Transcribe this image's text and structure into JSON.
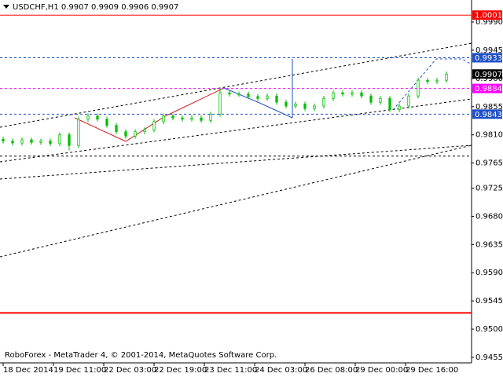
{
  "chart_data": {
    "type": "candlestick",
    "title": "USDCHF,H1  0.9907 0.9909 0.9906 0.9907",
    "annotation": "RoboForex - MetaTrader 4, © 2001-2014, MetaQuotes Software Corp.",
    "x": [
      0,
      3,
      6,
      9,
      12,
      15,
      18,
      21,
      24,
      27,
      30,
      33,
      36,
      39,
      42,
      45,
      48,
      51,
      54,
      57,
      60,
      63,
      66,
      69,
      72,
      75,
      78,
      81,
      84,
      87,
      90,
      93,
      96,
      99,
      102,
      105,
      108,
      111,
      114,
      117,
      120,
      123,
      126,
      129,
      132,
      135,
      138,
      141
    ],
    "open": [
      0.9803,
      0.98,
      0.9797,
      0.9802,
      0.9798,
      0.98,
      0.9796,
      0.981,
      0.9793,
      0.9835,
      0.984,
      0.9835,
      0.9825,
      0.9815,
      0.9808,
      0.9815,
      0.9818,
      0.9831,
      0.984,
      0.9837,
      0.9835,
      0.9837,
      0.9833,
      0.9843,
      0.9877,
      0.9875,
      0.9875,
      0.9871,
      0.9868,
      0.9872,
      0.9862,
      0.9856,
      0.9859,
      0.9852,
      0.9856,
      0.9868,
      0.9877,
      0.9875,
      0.9877,
      0.9872,
      0.9862,
      0.9868,
      0.985,
      0.9856,
      0.9872,
      0.9897,
      0.9895,
      0.9897
    ],
    "high": [
      0.9807,
      0.9804,
      0.9806,
      0.9806,
      0.9804,
      0.9804,
      0.9814,
      0.9814,
      0.9839,
      0.9844,
      0.9844,
      0.9839,
      0.9829,
      0.9819,
      0.9819,
      0.9822,
      0.9835,
      0.9844,
      0.9844,
      0.9841,
      0.9841,
      0.9841,
      0.9847,
      0.9886,
      0.9881,
      0.9879,
      0.9879,
      0.9875,
      0.9876,
      0.9876,
      0.9866,
      0.9863,
      0.9863,
      0.986,
      0.9872,
      0.9881,
      0.9881,
      0.9881,
      0.9881,
      0.9876,
      0.9872,
      0.9872,
      0.986,
      0.9876,
      0.9901,
      0.9901,
      0.9901,
      0.9911
    ],
    "low": [
      0.9796,
      0.9793,
      0.9793,
      0.9794,
      0.9794,
      0.9792,
      0.9792,
      0.9785,
      0.9789,
      0.9831,
      0.9831,
      0.9821,
      0.9811,
      0.9804,
      0.9804,
      0.9811,
      0.9814,
      0.9827,
      0.9833,
      0.9831,
      0.9831,
      0.9829,
      0.9829,
      0.9839,
      0.9871,
      0.9871,
      0.9867,
      0.9864,
      0.9864,
      0.9858,
      0.9852,
      0.9852,
      0.9848,
      0.9848,
      0.9852,
      0.9864,
      0.9871,
      0.9871,
      0.9868,
      0.9858,
      0.9858,
      0.9846,
      0.9846,
      0.9852,
      0.9868,
      0.9891,
      0.9891,
      0.9893
    ],
    "close": [
      0.98,
      0.9797,
      0.9802,
      0.9798,
      0.98,
      0.9796,
      0.981,
      0.9793,
      0.9835,
      0.984,
      0.9835,
      0.9825,
      0.9815,
      0.9808,
      0.9815,
      0.9818,
      0.9831,
      0.984,
      0.9837,
      0.9835,
      0.9837,
      0.9833,
      0.9843,
      0.9877,
      0.9875,
      0.9875,
      0.9871,
      0.9868,
      0.9872,
      0.9862,
      0.9856,
      0.9859,
      0.9852,
      0.9856,
      0.9868,
      0.9877,
      0.9875,
      0.9877,
      0.9872,
      0.9862,
      0.9868,
      0.985,
      0.9856,
      0.9872,
      0.9897,
      0.9895,
      0.9897,
      0.9907
    ],
    "up_color": "#ffffff",
    "down_color": "#00c000",
    "wick_color": "#00c000",
    "xlim": [
      -1,
      149
    ],
    "xticks": [
      {
        "value": 0,
        "label": "18 Dec 2014"
      },
      {
        "value": 16,
        "label": "19 Dec 11:00"
      },
      {
        "value": 32,
        "label": "22 Dec 03:00"
      },
      {
        "value": 48,
        "label": "22 Dec 19:00"
      },
      {
        "value": 64,
        "label": "23 Dec 11:00"
      },
      {
        "value": 80,
        "label": "24 Dec 03:00"
      },
      {
        "value": 96,
        "label": "26 Dec 08:00"
      },
      {
        "value": 112,
        "label": "29 Dec 00:00"
      },
      {
        "value": 128,
        "label": "29 Dec 16:00"
      }
    ],
    "ylim": [
      0.94462,
      1.00251
    ],
    "yticks": [
      {
        "value": 0.999,
        "label": "0.9990"
      },
      {
        "value": 0.9945,
        "label": "0.9945"
      },
      {
        "value": 0.99,
        "label": "0.9900"
      },
      {
        "value": 0.9855,
        "label": "0.9855"
      },
      {
        "value": 0.981,
        "label": "0.9810"
      },
      {
        "value": 0.9765,
        "label": "0.9765"
      },
      {
        "value": 0.9725,
        "label": "0.9725"
      },
      {
        "value": 0.968,
        "label": "0.9680"
      },
      {
        "value": 0.9635,
        "label": "0.9635"
      },
      {
        "value": 0.959,
        "label": "0.9590"
      },
      {
        "value": 0.9545,
        "label": "0.9545"
      },
      {
        "value": 0.95,
        "label": "0.9500"
      },
      {
        "value": 0.9455,
        "label": "0.9455"
      }
    ],
    "price_labels": [
      {
        "value": 1.0001,
        "color": "#ff0000",
        "line": true
      },
      {
        "value": 0.9933,
        "color": "#1e50c8",
        "line": true
      },
      {
        "value": 0.9907,
        "color": "#000000",
        "line": false
      },
      {
        "value": 0.9884,
        "color": "#ff00ff",
        "line": true
      },
      {
        "value": 0.9843,
        "color": "#1e50c8",
        "line": true
      }
    ],
    "levels": [
      {
        "value": 0.9776,
        "color": "#000000"
      },
      {
        "value": 0.9526,
        "color": "#ff0000"
      }
    ]
  }
}
